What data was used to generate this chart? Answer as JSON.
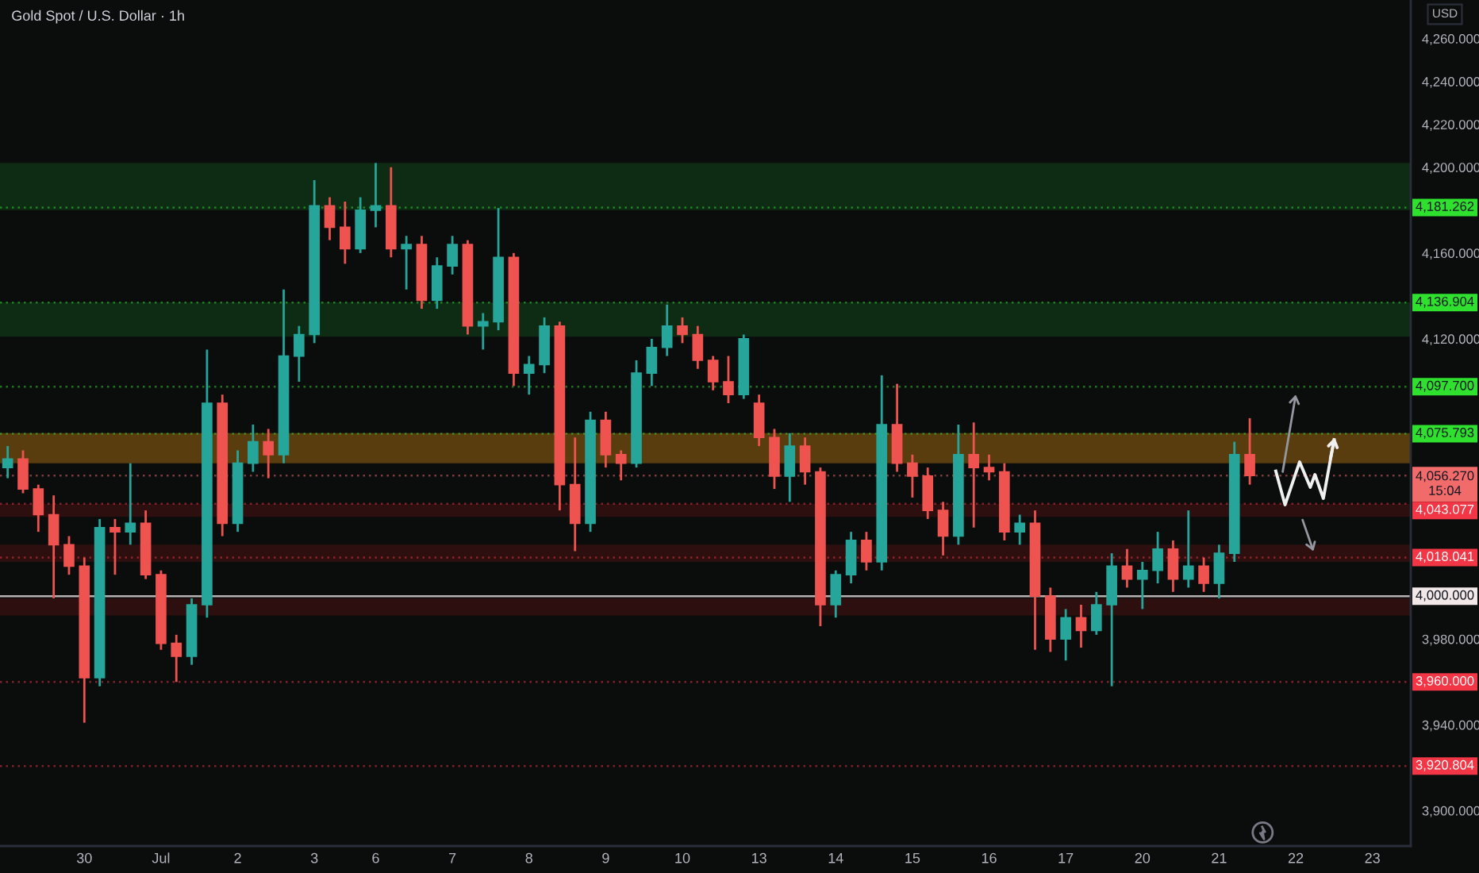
{
  "chart_data": {
    "type": "candlestick",
    "title": "Gold Spot / U.S. Dollar · 1h",
    "ylabel": "USD",
    "categories": [
      null,
      null,
      null,
      null,
      null,
      "30",
      null,
      null,
      null,
      null,
      "Jul",
      null,
      null,
      null,
      null,
      "2",
      null,
      null,
      null,
      null,
      "3",
      null,
      null,
      null,
      "6",
      null,
      null,
      null,
      null,
      "7",
      null,
      null,
      null,
      null,
      "8",
      null,
      null,
      null,
      null,
      "9",
      null,
      null,
      null,
      null,
      "10",
      null,
      null,
      null,
      null,
      "13",
      null,
      null,
      null,
      null,
      "14",
      null,
      null,
      null,
      null,
      "15",
      null,
      null,
      null,
      null,
      "16",
      null,
      null,
      null,
      null,
      "17",
      null,
      null,
      null,
      null,
      "20",
      null,
      null,
      null,
      null,
      "21",
      null,
      null,
      null,
      null,
      "22",
      null,
      null,
      null,
      null,
      "23",
      null,
      null
    ],
    "ohlc": [
      [
        4060,
        4070,
        4055,
        4064
      ],
      [
        4064,
        4068,
        4048,
        4050
      ],
      [
        4050,
        4052,
        4030,
        4038
      ],
      [
        4038,
        4047,
        3999,
        4024
      ],
      [
        4024,
        4028,
        4010,
        4014
      ],
      [
        4014,
        4018,
        3941,
        3962
      ],
      [
        3962,
        4036,
        3958,
        4032
      ],
      [
        4032,
        4036,
        4010,
        4030
      ],
      [
        4030,
        4062,
        4024,
        4034
      ],
      [
        4034,
        4040,
        4008,
        4010
      ],
      [
        4010,
        4012,
        3975,
        3978
      ],
      [
        3978,
        3982,
        3960,
        3972
      ],
      [
        3972,
        3999,
        3968,
        3996
      ],
      [
        3996,
        4115,
        3990,
        4090
      ],
      [
        4090,
        4094,
        4028,
        4034
      ],
      [
        4034,
        4068,
        4030,
        4062
      ],
      [
        4062,
        4080,
        4058,
        4072
      ],
      [
        4072,
        4078,
        4055,
        4066
      ],
      [
        4066,
        4143,
        4062,
        4112
      ],
      [
        4112,
        4126,
        4100,
        4122
      ],
      [
        4122,
        4194,
        4118,
        4182
      ],
      [
        4182,
        4186,
        4166,
        4172
      ],
      [
        4172,
        4184,
        4155,
        4162
      ],
      [
        4162,
        4186,
        4160,
        4180
      ],
      [
        4180,
        4202,
        4172,
        4182
      ],
      [
        4182,
        4200,
        4158,
        4162
      ],
      [
        4162,
        4168,
        4143,
        4164
      ],
      [
        4164,
        4168,
        4134,
        4138
      ],
      [
        4138,
        4158,
        4134,
        4154
      ],
      [
        4154,
        4168,
        4150,
        4164
      ],
      [
        4164,
        4166,
        4122,
        4126
      ],
      [
        4126,
        4132,
        4115,
        4128
      ],
      [
        4128,
        4181,
        4124,
        4158
      ],
      [
        4158,
        4160,
        4098,
        4104
      ],
      [
        4104,
        4112,
        4094,
        4108
      ],
      [
        4108,
        4130,
        4104,
        4126
      ],
      [
        4126,
        4128,
        4040,
        4052
      ],
      [
        4052,
        4074,
        4021,
        4034
      ],
      [
        4034,
        4086,
        4030,
        4082
      ],
      [
        4082,
        4086,
        4060,
        4066
      ],
      [
        4066,
        4068,
        4054,
        4062
      ],
      [
        4062,
        4110,
        4060,
        4104
      ],
      [
        4104,
        4120,
        4098,
        4116
      ],
      [
        4116,
        4136,
        4112,
        4126
      ],
      [
        4126,
        4130,
        4118,
        4122
      ],
      [
        4122,
        4126,
        4106,
        4110
      ],
      [
        4110,
        4112,
        4096,
        4100
      ],
      [
        4100,
        4112,
        4090,
        4094
      ],
      [
        4094,
        4122,
        4092,
        4120
      ],
      [
        4090,
        4094,
        4070,
        4074
      ],
      [
        4074,
        4078,
        4050,
        4056
      ],
      [
        4056,
        4076,
        4044,
        4070
      ],
      [
        4070,
        4074,
        4052,
        4058
      ],
      [
        4058,
        4060,
        3986,
        3996
      ],
      [
        3996,
        4012,
        3990,
        4010
      ],
      [
        4010,
        4030,
        4006,
        4026
      ],
      [
        4026,
        4030,
        4012,
        4016
      ],
      [
        4016,
        4103,
        4012,
        4080
      ],
      [
        4080,
        4099,
        4058,
        4062
      ],
      [
        4062,
        4066,
        4046,
        4056
      ],
      [
        4056,
        4060,
        4036,
        4040
      ],
      [
        4040,
        4044,
        4019,
        4028
      ],
      [
        4028,
        4080,
        4024,
        4066
      ],
      [
        4066,
        4081,
        4032,
        4060
      ],
      [
        4060,
        4066,
        4054,
        4058
      ],
      [
        4058,
        4062,
        4026,
        4030
      ],
      [
        4030,
        4038,
        4024,
        4034
      ],
      [
        4034,
        4040,
        3975,
        4000
      ],
      [
        4000,
        4004,
        3974,
        3980
      ],
      [
        3980,
        3994,
        3970,
        3990
      ],
      [
        3990,
        3996,
        3976,
        3984
      ],
      [
        3984,
        4002,
        3982,
        3996
      ],
      [
        3996,
        4020,
        3958,
        4014
      ],
      [
        4014,
        4022,
        4004,
        4008
      ],
      [
        4008,
        4016,
        3994,
        4012
      ],
      [
        4012,
        4030,
        4006,
        4022
      ],
      [
        4022,
        4026,
        4002,
        4008
      ],
      [
        4008,
        4040,
        4004,
        4014
      ],
      [
        4014,
        4018,
        4002,
        4006
      ],
      [
        4006,
        4024,
        3999,
        4020
      ],
      [
        4020,
        4072,
        4016,
        4066
      ],
      [
        4066,
        4083,
        4052,
        4056.27
      ],
      null,
      null,
      null,
      null,
      null,
      null,
      null,
      null,
      null,
      null
    ],
    "colors": [
      "#26a69a",
      "#ef5350",
      "#ef5350",
      "#ef5350",
      "#ef5350",
      "#ef5350",
      "#26a69a",
      "#ef5350",
      "#26a69a",
      "#ef5350",
      "#ef5350",
      "#ef5350",
      "#26a69a",
      "#26a69a",
      "#ef5350",
      "#26a69a",
      "#26a69a",
      "#ef5350",
      "#26a69a",
      "#26a69a",
      "#26a69a",
      "#ef5350",
      "#ef5350",
      "#26a69a",
      "#26a69a",
      "#ef5350",
      "#26a69a",
      "#ef5350",
      "#26a69a",
      "#26a69a",
      "#ef5350",
      "#26a69a",
      "#26a69a",
      "#ef5350",
      "#26a69a",
      "#26a69a",
      "#ef5350",
      "#ef5350",
      "#26a69a",
      "#ef5350",
      "#ef5350",
      "#26a69a",
      "#26a69a",
      "#26a69a",
      "#ef5350",
      "#ef5350",
      "#ef5350",
      "#ef5350",
      "#26a69a",
      "#ef5350",
      "#ef5350",
      "#26a69a",
      "#ef5350",
      "#ef5350",
      "#26a69a",
      "#26a69a",
      "#ef5350",
      "#26a69a",
      "#ef5350",
      "#ef5350",
      "#ef5350",
      "#ef5350",
      "#26a69a",
      "#ef5350",
      "#ef5350",
      "#ef5350",
      "#26a69a",
      "#ef5350",
      "#ef5350",
      "#26a69a",
      "#ef5350",
      "#26a69a",
      "#26a69a",
      "#ef5350",
      "#26a69a",
      "#26a69a",
      "#ef5350",
      "#26a69a",
      "#ef5350",
      "#26a69a",
      "#26a69a",
      "#ef5350",
      null,
      null,
      null,
      null,
      null,
      null,
      null,
      null,
      null,
      null
    ],
    "ylim": [
      3883.5,
      4278
    ],
    "yticks": [
      {
        "value": 3900,
        "label": "3,900.000"
      },
      {
        "value": 3940,
        "label": "3,940.000"
      },
      {
        "value": 3980,
        "label": "3,980.000"
      },
      {
        "value": 4120,
        "label": "4,120.000"
      },
      {
        "value": 4160,
        "label": "4,160.000"
      },
      {
        "value": 4200,
        "label": "4,200.000"
      },
      {
        "value": 4220,
        "label": "4,220.000"
      },
      {
        "value": 4240,
        "label": "4,240.000"
      },
      {
        "value": 4260,
        "label": "4,260.000"
      }
    ],
    "ref_lines": [
      {
        "axis": "y",
        "value": 4181.262,
        "label": "4,181.262",
        "color": "#2fe02f",
        "line_style": "dotted"
      },
      {
        "axis": "y",
        "value": 4136.904,
        "label": "4,136.904",
        "color": "#2fe02f",
        "line_style": "dotted"
      },
      {
        "axis": "y",
        "value": 4097.7,
        "label": "4,097.700",
        "color": "#2fe02f",
        "line_style": "dotted"
      },
      {
        "axis": "y",
        "value": 4075.793,
        "label": "4,075.793",
        "color": "#2fe02f",
        "line_style": "dotted"
      },
      {
        "axis": "y",
        "value": 4056.27,
        "label": "4,056.270\n15:04",
        "color": "#f26b6b",
        "line_style": "dotted"
      },
      {
        "axis": "y",
        "value": 4043.077,
        "label": "4,043.077",
        "color": "#f23645",
        "line_style": "dotted"
      },
      {
        "axis": "y",
        "value": 4018.041,
        "label": "4,018.041",
        "color": "#f23645",
        "line_style": "dotted"
      },
      {
        "axis": "y",
        "value": 4000,
        "label": "4,000.000",
        "color": "#f2e8e8",
        "line_style": "solid"
      },
      {
        "axis": "y",
        "value": 3960,
        "label": "3,960.000",
        "color": "#f23645",
        "line_style": "dotted"
      },
      {
        "axis": "y",
        "value": 3920.804,
        "label": "3,920.804",
        "color": "#f23645",
        "line_style": "dotted"
      }
    ],
    "bands": [
      {
        "axis": "y",
        "from": 4180,
        "to": 4202,
        "color": "#0e2b14"
      },
      {
        "axis": "y",
        "from": 4121,
        "to": 4137,
        "color": "#0e2b14"
      },
      {
        "axis": "y",
        "from": 4062,
        "to": 4076,
        "color": "#5a3d0e"
      },
      {
        "axis": "y",
        "from": 4037,
        "to": 4043,
        "color": "#2e0f0f"
      },
      {
        "axis": "y",
        "from": 4016,
        "to": 4024,
        "color": "#2e0f0f"
      },
      {
        "axis": "y",
        "from": 3991,
        "to": 3999,
        "color": "#2e0f0f"
      }
    ]
  }
}
